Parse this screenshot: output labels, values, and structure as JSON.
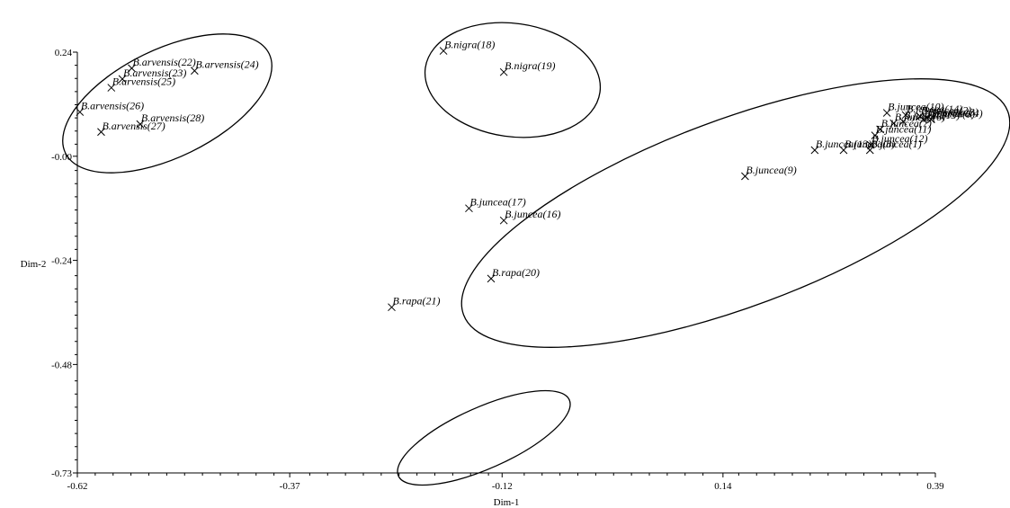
{
  "chart_data": {
    "type": "scatter",
    "xlabel": "Dim-1",
    "ylabel": "Dim-2",
    "xlim": [
      -0.62,
      0.39
    ],
    "ylim": [
      -0.73,
      0.24
    ],
    "xticks": [
      {
        "value": -0.62,
        "label": "-0.62"
      },
      {
        "value": -0.37,
        "label": "-0.37"
      },
      {
        "value": -0.12,
        "label": "-0.12"
      },
      {
        "value": 0.14,
        "label": "0.14"
      },
      {
        "value": 0.39,
        "label": "0.39"
      }
    ],
    "yticks": [
      {
        "value": 0.24,
        "label": "0.24"
      },
      {
        "value": 0.0,
        "label": "-0.00"
      },
      {
        "value": -0.24,
        "label": "-0.24"
      },
      {
        "value": -0.48,
        "label": "-0.48"
      },
      {
        "value": -0.73,
        "label": "-0.73"
      }
    ],
    "grid": false,
    "points": [
      {
        "label": "B.arvensis(22)",
        "x": -0.556,
        "y": 0.203
      },
      {
        "label": "B.arvensis(24)",
        "x": -0.482,
        "y": 0.197
      },
      {
        "label": "B.arvensis(23)",
        "x": -0.567,
        "y": 0.178
      },
      {
        "label": "B.arvensis(25)",
        "x": -0.58,
        "y": 0.158
      },
      {
        "label": "B.arvensis(26)",
        "x": -0.617,
        "y": 0.102
      },
      {
        "label": "B.arvensis(28)",
        "x": -0.546,
        "y": 0.074
      },
      {
        "label": "B.arvensis(27)",
        "x": -0.592,
        "y": 0.056
      },
      {
        "label": "B.nigra(18)",
        "x": -0.189,
        "y": 0.243
      },
      {
        "label": "B.nigra(19)",
        "x": -0.118,
        "y": 0.194
      },
      {
        "label": "B.juncea(10)",
        "x": 0.333,
        "y": 0.1
      },
      {
        "label": "B.juncea(14)",
        "x": 0.355,
        "y": 0.095
      },
      {
        "label": "B.juncea(2)",
        "x": 0.372,
        "y": 0.092
      },
      {
        "label": "B.juncea(3)",
        "x": 0.38,
        "y": 0.088
      },
      {
        "label": "B.juncea(4)",
        "x": 0.385,
        "y": 0.085
      },
      {
        "label": "B.juncea(5)",
        "x": 0.376,
        "y": 0.084
      },
      {
        "label": "B.juncea(15)",
        "x": 0.352,
        "y": 0.08
      },
      {
        "label": "B.juncea(6)",
        "x": 0.341,
        "y": 0.076
      },
      {
        "label": "B.juncea(7)",
        "x": 0.325,
        "y": 0.062
      },
      {
        "label": "B.juncea(11)",
        "x": 0.319,
        "y": 0.048
      },
      {
        "label": "B.juncea(12)",
        "x": 0.314,
        "y": 0.026
      },
      {
        "label": "B.juncea(13)",
        "x": 0.248,
        "y": 0.014
      },
      {
        "label": "B.juncea(8)",
        "x": 0.282,
        "y": 0.014
      },
      {
        "label": "B.juncea(1)",
        "x": 0.313,
        "y": 0.014
      },
      {
        "label": "B.juncea(9)",
        "x": 0.166,
        "y": -0.046
      },
      {
        "label": "B.juncea(17)",
        "x": -0.159,
        "y": -0.12
      },
      {
        "label": "B.juncea(16)",
        "x": -0.118,
        "y": -0.148
      },
      {
        "label": "B.rapa(20)",
        "x": -0.133,
        "y": -0.282
      },
      {
        "label": "B.rapa(21)",
        "x": -0.25,
        "y": -0.348
      }
    ]
  }
}
